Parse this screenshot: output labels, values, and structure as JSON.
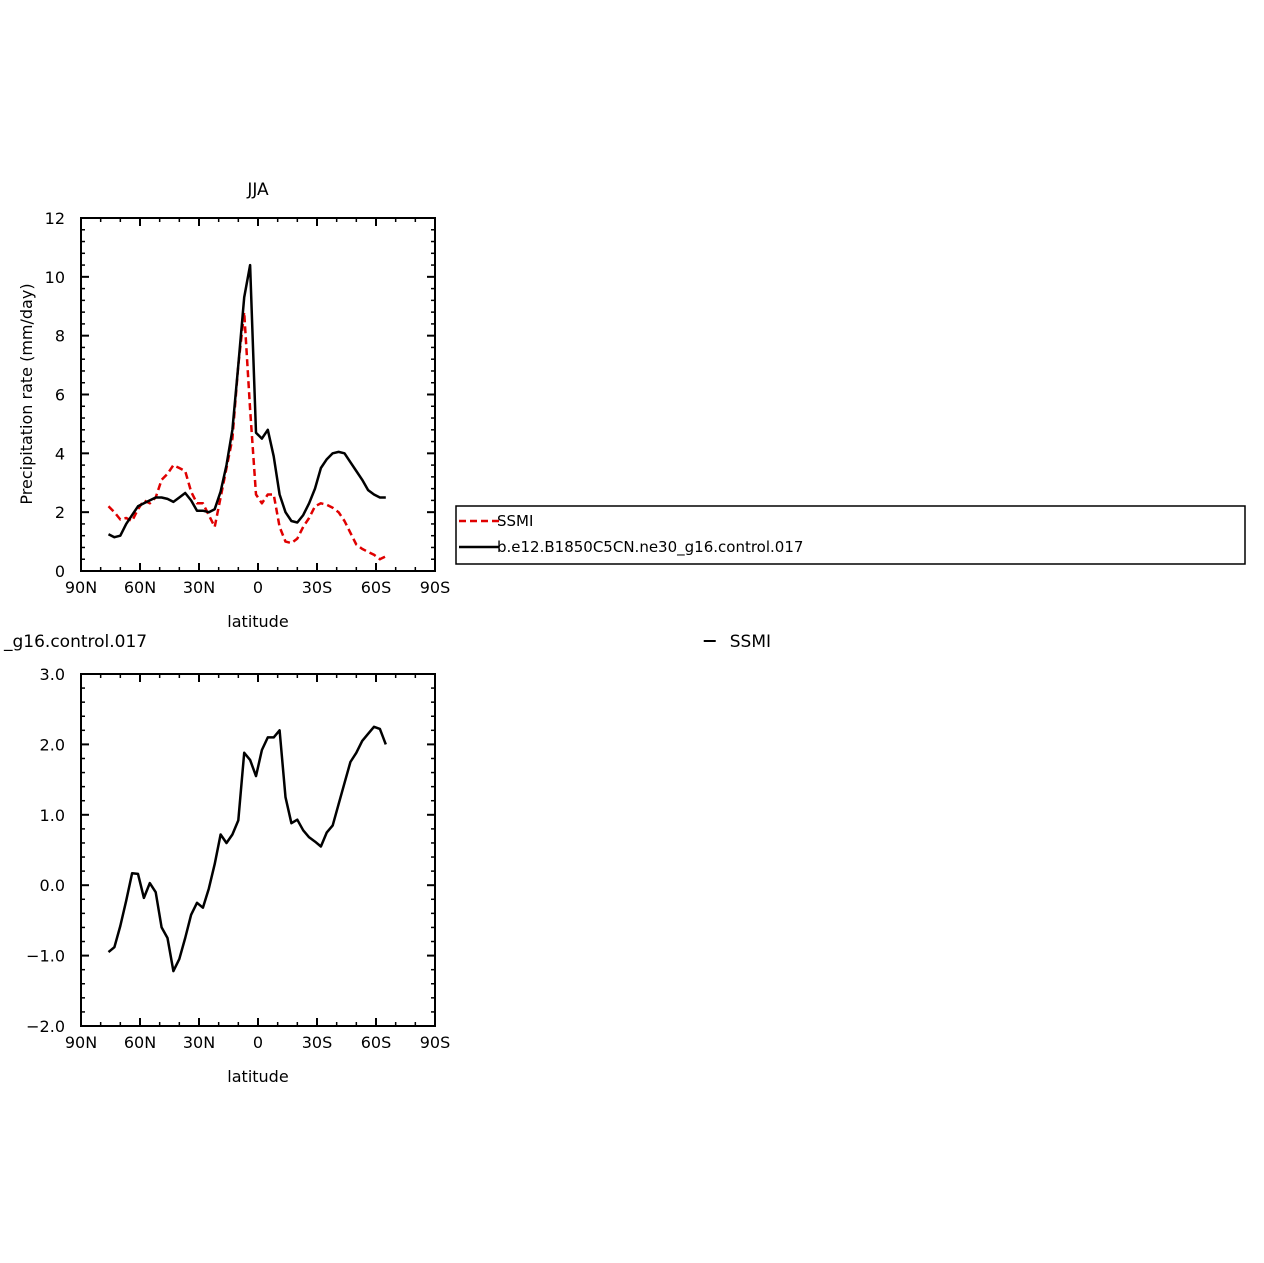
{
  "chart_data": [
    {
      "type": "line",
      "title": "JJA",
      "xlabel": "latitude",
      "ylabel": "Precipitation rate (mm/day)",
      "xlim": [
        90,
        -90
      ],
      "ylim": [
        0,
        12
      ],
      "xticks": [
        90,
        60,
        30,
        0,
        -30,
        -60,
        -90
      ],
      "xtick_labels": [
        "90N",
        "60N",
        "30N",
        "0",
        "30S",
        "60S",
        "90S"
      ],
      "yticks": [
        0,
        2,
        4,
        6,
        8,
        10,
        12
      ],
      "ytick_labels": [
        "0",
        "2",
        "4",
        "6",
        "8",
        "10",
        "12"
      ],
      "series": [
        {
          "name": "SSMI",
          "color": "#e00000",
          "style": "dashed",
          "x": [
            76,
            73,
            70,
            67,
            64,
            61,
            58,
            55,
            52,
            49,
            46,
            43,
            40,
            37,
            34,
            31,
            28,
            25,
            22,
            19,
            16,
            13,
            10,
            7,
            4,
            1,
            -2,
            -5,
            -8,
            -11,
            -14,
            -17,
            -20,
            -23,
            -26,
            -29,
            -32,
            -35,
            -38,
            -41,
            -44,
            -47,
            -50,
            -53,
            -56,
            -59,
            -62,
            -65
          ],
          "values": [
            2.2,
            2.0,
            1.75,
            1.8,
            1.7,
            2.1,
            2.4,
            2.3,
            2.5,
            3.1,
            3.3,
            3.6,
            3.5,
            3.4,
            2.7,
            2.3,
            2.3,
            1.9,
            1.5,
            2.5,
            3.5,
            4.5,
            7.0,
            8.8,
            5.5,
            2.6,
            2.3,
            2.6,
            2.6,
            1.5,
            1.0,
            0.95,
            1.1,
            1.5,
            1.8,
            2.2,
            2.3,
            2.25,
            2.15,
            2.0,
            1.7,
            1.3,
            0.9,
            0.75,
            0.65,
            0.55,
            0.4,
            0.5
          ]
        },
        {
          "name": "b.e12.B1850C5CN.ne30_g16.control.017",
          "color": "#000000",
          "style": "solid",
          "x": [
            76,
            73,
            70,
            67,
            64,
            61,
            58,
            55,
            52,
            49,
            46,
            43,
            40,
            37,
            34,
            31,
            28,
            25,
            22,
            19,
            16,
            13,
            10,
            7,
            4,
            1,
            -2,
            -5,
            -8,
            -11,
            -14,
            -17,
            -20,
            -23,
            -26,
            -29,
            -32,
            -35,
            -38,
            -41,
            -44,
            -47,
            -50,
            -53,
            -56,
            -59,
            -62,
            -65
          ],
          "values": [
            1.25,
            1.15,
            1.2,
            1.6,
            1.9,
            2.2,
            2.3,
            2.4,
            2.5,
            2.5,
            2.45,
            2.35,
            2.5,
            2.65,
            2.4,
            2.05,
            2.05,
            2.0,
            2.1,
            2.7,
            3.6,
            4.8,
            7.0,
            9.3,
            10.4,
            4.7,
            4.5,
            4.8,
            3.9,
            2.6,
            2.0,
            1.7,
            1.65,
            1.9,
            2.3,
            2.8,
            3.5,
            3.8,
            4.0,
            4.05,
            4.0,
            3.7,
            3.4,
            3.1,
            2.75,
            2.6,
            2.5,
            2.5
          ]
        }
      ],
      "legend": "right"
    },
    {
      "type": "line",
      "title": "_g16.control.017",
      "right_title": "SSMI",
      "xlabel": "latitude",
      "ylabel": "Precipitation rate (mm/day)",
      "xlim": [
        90,
        -90
      ],
      "ylim": [
        -2.0,
        3.0
      ],
      "xticks": [
        90,
        60,
        30,
        0,
        -30,
        -60,
        -90
      ],
      "xtick_labels": [
        "90N",
        "60N",
        "30N",
        "0",
        "30S",
        "60S",
        "90S"
      ],
      "yticks": [
        -2.0,
        -1.0,
        0.0,
        1.0,
        2.0,
        3.0
      ],
      "ytick_labels": [
        "−2.0",
        "−1.0",
        "0.0",
        "1.0",
        "2.0",
        "3.0"
      ],
      "series": [
        {
          "color": "#000000",
          "style": "solid",
          "x": [
            76,
            73,
            70,
            67,
            64,
            61,
            58,
            55,
            52,
            49,
            46,
            43,
            40,
            37,
            34,
            31,
            28,
            25,
            22,
            19,
            16,
            13,
            10,
            7,
            4,
            1,
            -2,
            -5,
            -8,
            -11,
            -14,
            -17,
            -20,
            -23,
            -26,
            -29,
            -32,
            -35,
            -38,
            -41,
            -44,
            -47,
            -50,
            -53,
            -56,
            -59,
            -62,
            -65
          ],
          "values": [
            -0.95,
            -0.88,
            -0.58,
            -0.22,
            0.17,
            0.16,
            -0.18,
            0.03,
            -0.1,
            -0.6,
            -0.75,
            -1.22,
            -1.05,
            -0.75,
            -0.42,
            -0.25,
            -0.32,
            -0.05,
            0.3,
            0.72,
            0.6,
            0.72,
            0.92,
            1.88,
            1.78,
            1.55,
            1.92,
            2.1,
            2.1,
            2.2,
            1.25,
            0.88,
            0.93,
            0.78,
            0.68,
            0.62,
            0.55,
            0.75,
            0.85,
            1.15,
            1.45,
            1.75,
            1.88,
            2.05,
            2.15,
            2.25,
            2.22,
            2.0
          ]
        }
      ]
    }
  ]
}
